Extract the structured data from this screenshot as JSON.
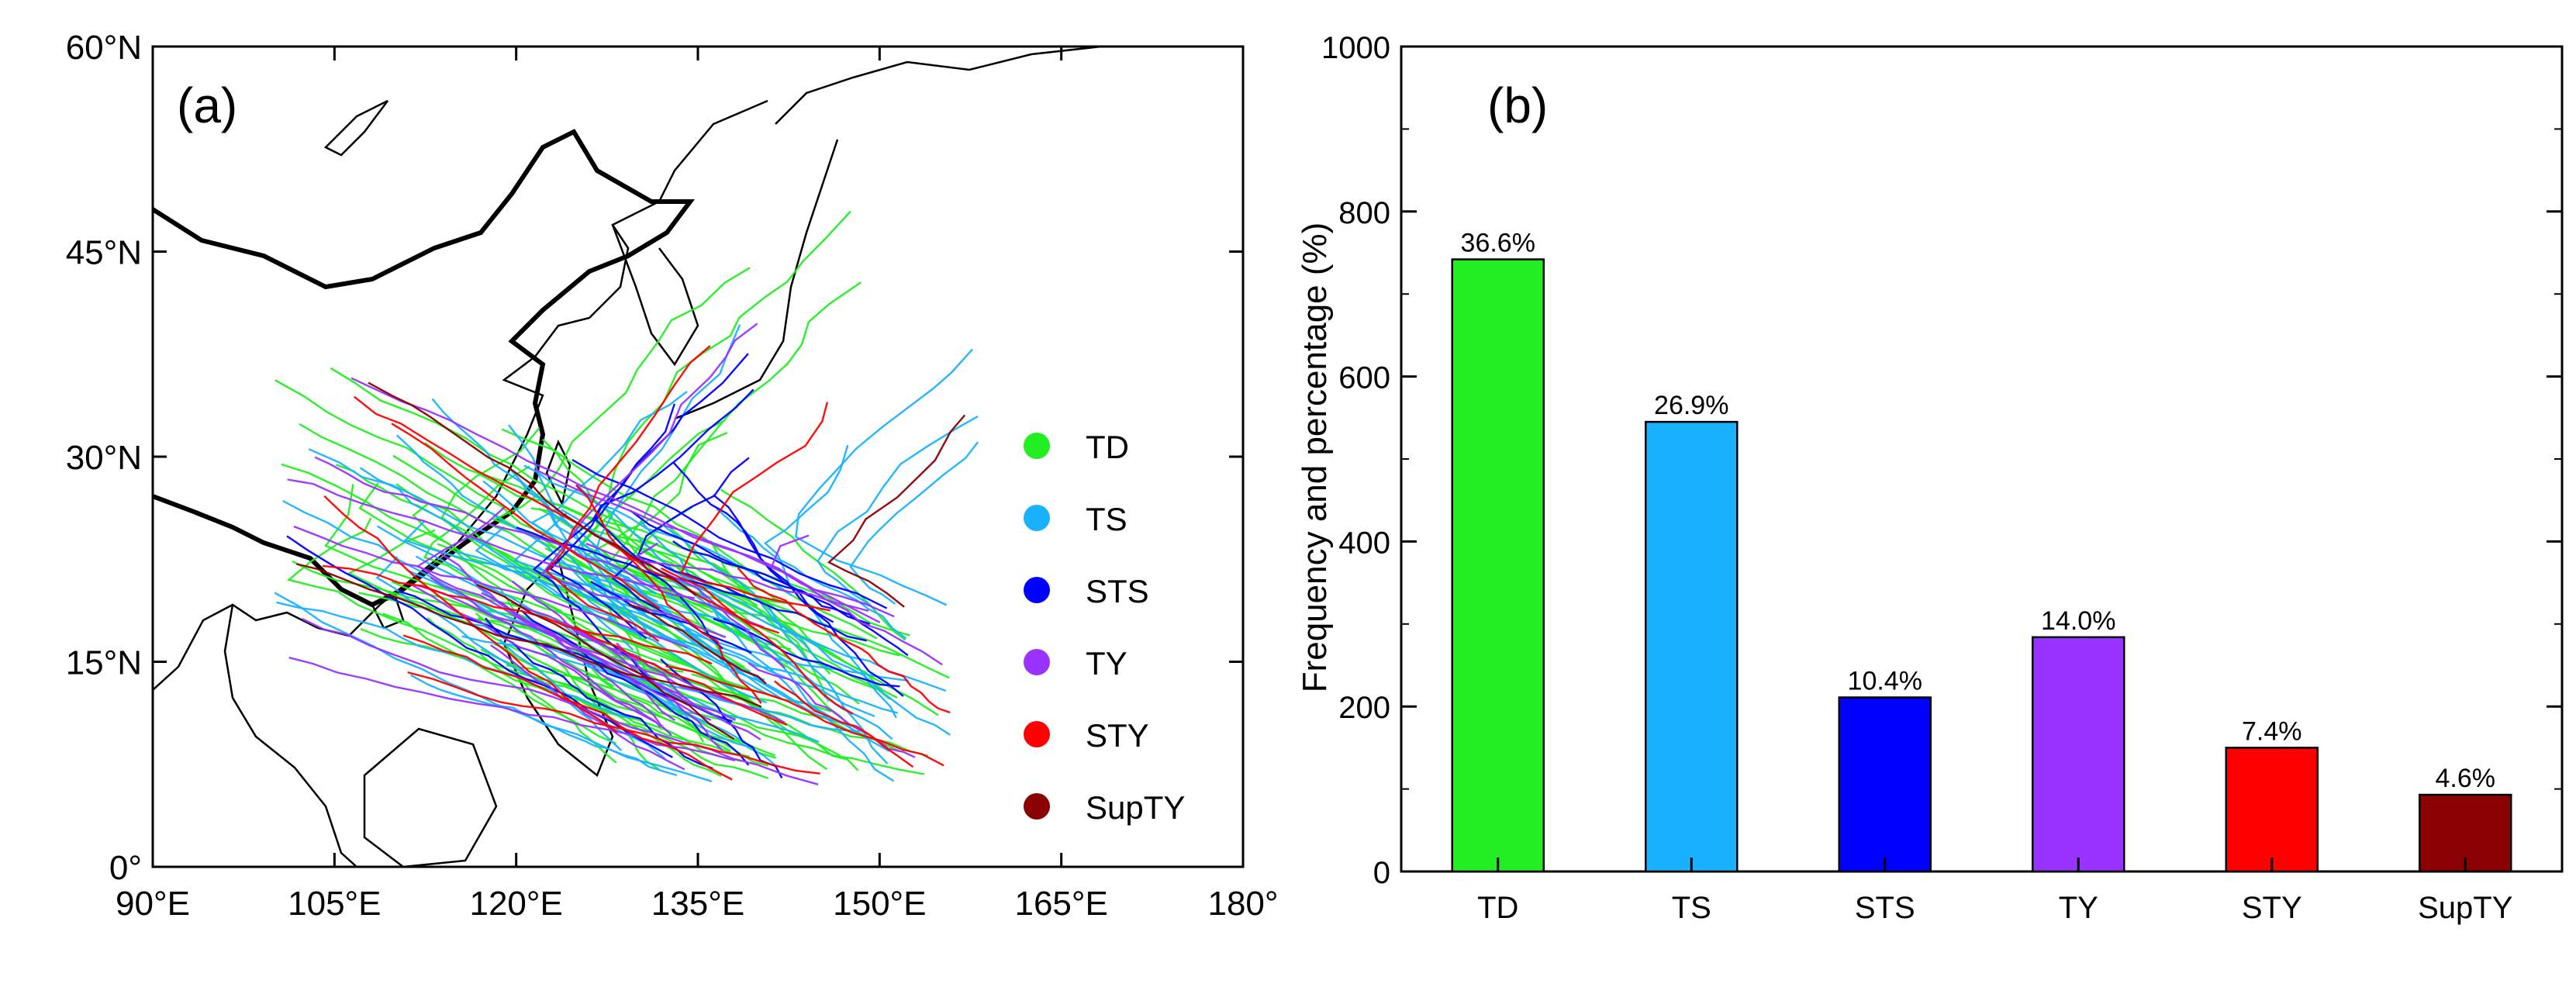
{
  "chart_data": [
    {
      "type": "map",
      "panel_label": "(a)",
      "xlim": [
        90,
        180
      ],
      "ylim": [
        0,
        60
      ],
      "xticks": [
        90,
        105,
        120,
        135,
        150,
        165,
        180
      ],
      "yticks": [
        0,
        15,
        30,
        45,
        60
      ],
      "xtick_labels": [
        "90°E",
        "105°E",
        "120°E",
        "135°E",
        "150°E",
        "165°E",
        "180°"
      ],
      "ytick_labels": [
        "0°",
        "15°N",
        "30°N",
        "45°N",
        "60°N"
      ],
      "legend": {
        "position": "right",
        "entries": [
          {
            "label": "TD",
            "color": "#22ee22"
          },
          {
            "label": "TS",
            "color": "#1ab2ff"
          },
          {
            "label": "STS",
            "color": "#0000ff"
          },
          {
            "label": "TY",
            "color": "#9933ff"
          },
          {
            "label": "STY",
            "color": "#ff0000"
          },
          {
            "label": "SupTY",
            "color": "#8b0000"
          }
        ]
      }
    },
    {
      "type": "bar",
      "panel_label": "(b)",
      "categories": [
        "TD",
        "TS",
        "STS",
        "TY",
        "STY",
        "SupTY"
      ],
      "values": [
        742,
        545,
        211,
        284,
        150,
        93
      ],
      "data_labels": [
        "36.6%",
        "26.9%",
        "10.4%",
        "14.0%",
        "7.4%",
        "4.6%"
      ],
      "colors": [
        "#22ee22",
        "#1ab2ff",
        "#0000ff",
        "#9933ff",
        "#ff0000",
        "#8b0000"
      ],
      "ylabel": "Frequency and percentage (%)",
      "xlabel": "",
      "ylim": [
        0,
        1000
      ],
      "yticks": [
        0,
        200,
        400,
        600,
        800,
        1000
      ],
      "ytick_labels": [
        "0",
        "200",
        "400",
        "600",
        "800",
        "1000"
      ]
    }
  ]
}
